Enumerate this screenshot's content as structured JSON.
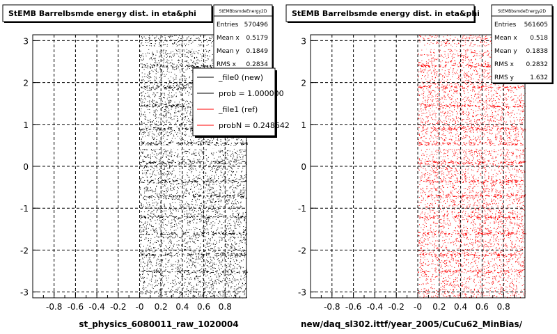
{
  "chart_data": [
    {
      "type": "scatter",
      "title": "StEMB Barrelbsmde energy dist. in eta&phi",
      "xlabel": "st_physics_6080011_raw_1020004",
      "ylabel": "",
      "xlim": [
        -1.0,
        1.0
      ],
      "ylim": [
        -3.14,
        3.14
      ],
      "x_ticks": [
        "-0.8",
        "-0.6",
        "-0.4",
        "-0.2",
        "-0",
        "0.2",
        "0.4",
        "0.6",
        "0.8"
      ],
      "y_ticks": [
        "-3",
        "-2",
        "-1",
        "0",
        "1",
        "2",
        "3"
      ],
      "grid": true,
      "point_color": "#000000",
      "filled_region": {
        "x": [
          0.0,
          1.0
        ],
        "y": [
          -3.14,
          3.14
        ]
      },
      "stats": {
        "name": "StEMBbsmdeEnergy2D",
        "rows": [
          {
            "label": "Entries",
            "value": "570496"
          },
          {
            "label": "Mean x",
            "value": "0.5179"
          },
          {
            "label": "Mean y",
            "value": "0.1849"
          },
          {
            "label": "RMS x",
            "value": "0.2834"
          }
        ]
      },
      "legend": {
        "placement": "top-right",
        "entries": [
          {
            "label": "_file0 (new)",
            "color": "#000000"
          },
          {
            "label": "prob = 1.000000",
            "color": "#000000"
          },
          {
            "label": "_file1 (ref)",
            "color": "#ff0000"
          },
          {
            "label": "probN = 0.248642",
            "color": "#ff0000"
          }
        ]
      }
    },
    {
      "type": "scatter",
      "title": "StEMB Barrelbsmde energy dist. in eta&phi",
      "xlabel": "new/daq_sl302.ittf/year_2005/CuCu62_MinBias/",
      "ylabel": "",
      "xlim": [
        -1.0,
        1.0
      ],
      "ylim": [
        -3.14,
        3.14
      ],
      "x_ticks": [
        "-0.8",
        "-0.6",
        "-0.4",
        "-0.2",
        "-0",
        "0.2",
        "0.4",
        "0.6",
        "0.8"
      ],
      "y_ticks": [
        "-3",
        "-2",
        "-1",
        "0",
        "1",
        "2",
        "3"
      ],
      "grid": true,
      "point_color": "#ff0000",
      "filled_region": {
        "x": [
          0.0,
          1.0
        ],
        "y": [
          -3.14,
          3.14
        ]
      },
      "stats": {
        "name": "StEMBbsmdeEnergy2D",
        "rows": [
          {
            "label": "Entries",
            "value": "561605"
          },
          {
            "label": "Mean x",
            "value": "0.518"
          },
          {
            "label": "Mean y",
            "value": "0.1838"
          },
          {
            "label": "RMS x",
            "value": "0.2832"
          },
          {
            "label": "RMS y",
            "value": "1.632"
          }
        ]
      }
    }
  ]
}
